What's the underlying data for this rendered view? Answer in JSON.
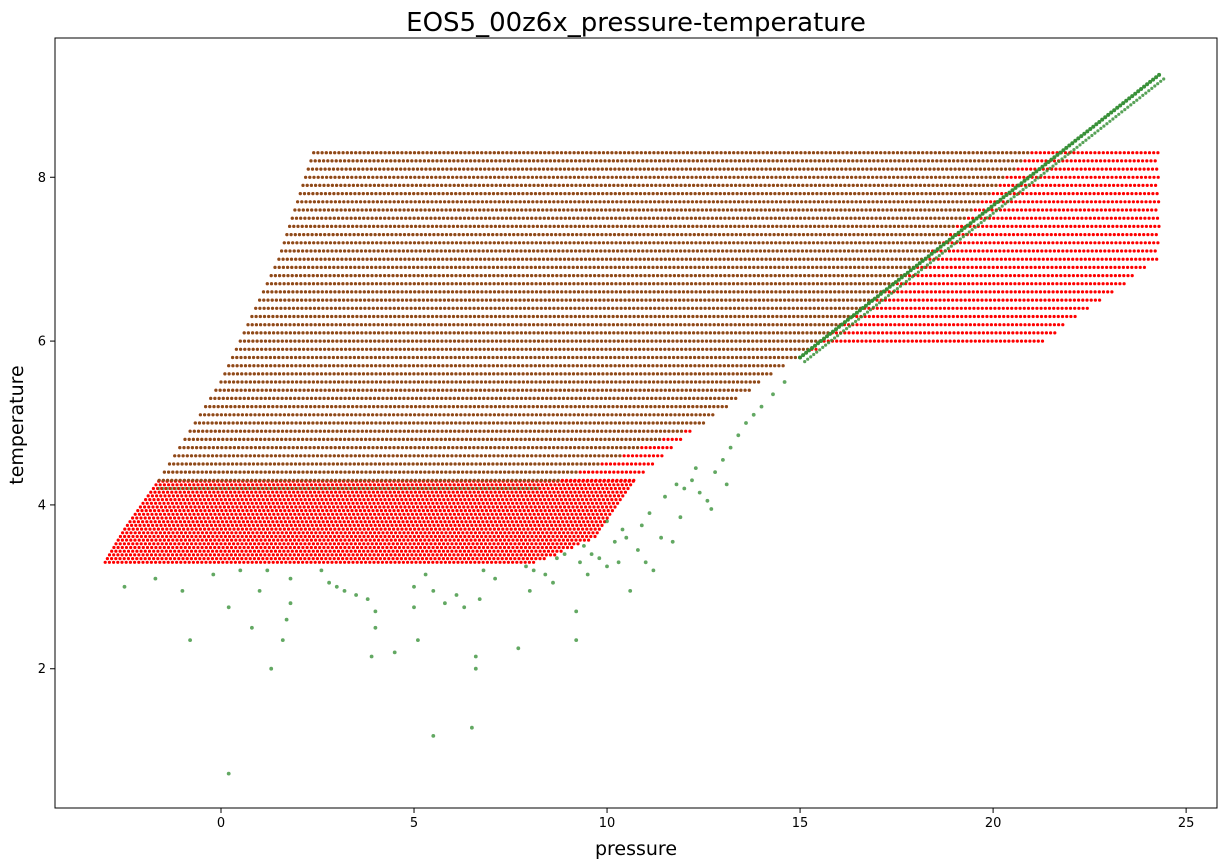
{
  "chart_data": {
    "type": "scatter",
    "title": "EOS5_00z6x_pressure-temperature",
    "xlabel": "pressure",
    "ylabel": "temperature",
    "xlim": [
      -4.3,
      25.8
    ],
    "ylim": [
      0.3,
      9.7
    ],
    "xticks": [
      0,
      5,
      10,
      15,
      20,
      25
    ],
    "yticks": [
      2,
      4,
      6,
      8
    ],
    "grid": false,
    "legend": "none",
    "series": [
      {
        "color": "#ff0000",
        "marker": "dot",
        "grid_region": {
          "y_range": [
            3.3,
            8.3
          ],
          "y_bands": [
            {
              "y_step": 0.045,
              "y_range": [
                3.3,
                4.3
              ]
            },
            {
              "y_step": 0.1,
              "y_range": [
                4.3,
                8.3
              ]
            }
          ],
          "left_boundary": [
            [
              -3.0,
              3.3
            ],
            [
              -2.5,
              3.7
            ],
            [
              -1.6,
              4.3
            ],
            [
              0.0,
              5.5
            ],
            [
              1.5,
              7.0
            ],
            [
              2.4,
              8.3
            ]
          ],
          "right_boundary": [
            [
              8.2,
              3.3
            ],
            [
              9.7,
              3.6
            ],
            [
              10.7,
              4.3
            ],
            [
              12.5,
              5.0
            ],
            [
              14.0,
              5.5
            ],
            [
              15.0,
              5.8
            ],
            [
              15.5,
              5.9
            ],
            [
              21.0,
              5.9
            ],
            [
              24.3,
              7.0
            ],
            [
              24.3,
              8.3
            ]
          ]
        }
      },
      {
        "color": "#2e8b2e",
        "marker": "dot",
        "grid_region": {
          "y_range": [
            4.2,
            8.3
          ],
          "y_step": 0.1,
          "left_boundary": [
            [
              -1.6,
              4.3
            ],
            [
              0.0,
              5.5
            ],
            [
              1.5,
              7.0
            ],
            [
              2.4,
              8.3
            ]
          ],
          "right_boundary": [
            [
              8.2,
              4.2
            ],
            [
              12.5,
              5.0
            ],
            [
              14.0,
              5.5
            ],
            [
              15.0,
              5.8
            ],
            [
              18.0,
              6.9
            ],
            [
              21.0,
              8.3
            ]
          ]
        },
        "trend_line": {
          "x": [
            15.0,
            24.3
          ],
          "y": [
            5.8,
            9.25
          ]
        },
        "scattered_points": [
          [
            -2.5,
            3.0
          ],
          [
            -1.7,
            3.1
          ],
          [
            -1.0,
            2.95
          ],
          [
            -0.8,
            2.35
          ],
          [
            -0.2,
            3.15
          ],
          [
            0.2,
            2.75
          ],
          [
            0.2,
            0.72
          ],
          [
            0.5,
            3.2
          ],
          [
            0.8,
            2.5
          ],
          [
            1.0,
            2.95
          ],
          [
            1.2,
            3.2
          ],
          [
            1.3,
            2.0
          ],
          [
            1.6,
            2.35
          ],
          [
            1.7,
            2.6
          ],
          [
            1.8,
            2.8
          ],
          [
            1.8,
            3.1
          ],
          [
            2.6,
            3.2
          ],
          [
            2.8,
            3.05
          ],
          [
            3.0,
            3.0
          ],
          [
            3.2,
            2.95
          ],
          [
            3.5,
            2.9
          ],
          [
            3.8,
            2.85
          ],
          [
            4.0,
            2.7
          ],
          [
            4.0,
            2.5
          ],
          [
            3.9,
            2.15
          ],
          [
            4.5,
            2.2
          ],
          [
            5.0,
            2.75
          ],
          [
            5.0,
            3.0
          ],
          [
            5.1,
            2.35
          ],
          [
            5.3,
            3.15
          ],
          [
            5.5,
            2.95
          ],
          [
            5.5,
            1.18
          ],
          [
            5.8,
            2.8
          ],
          [
            6.1,
            2.9
          ],
          [
            6.3,
            2.75
          ],
          [
            6.5,
            1.28
          ],
          [
            6.6,
            2.15
          ],
          [
            6.6,
            2.0
          ],
          [
            6.7,
            2.85
          ],
          [
            6.8,
            3.2
          ],
          [
            7.1,
            3.1
          ],
          [
            7.7,
            2.25
          ],
          [
            8.0,
            2.95
          ],
          [
            8.1,
            3.2
          ],
          [
            8.4,
            3.15
          ],
          [
            8.6,
            3.05
          ],
          [
            8.9,
            3.4
          ],
          [
            9.2,
            2.7
          ],
          [
            9.2,
            2.35
          ],
          [
            9.3,
            3.3
          ],
          [
            9.5,
            3.15
          ],
          [
            9.6,
            3.4
          ],
          [
            10.0,
            3.25
          ],
          [
            10.0,
            3.8
          ],
          [
            10.2,
            3.55
          ],
          [
            10.3,
            3.3
          ],
          [
            10.5,
            3.6
          ],
          [
            10.6,
            2.95
          ],
          [
            10.8,
            3.45
          ],
          [
            11.0,
            3.3
          ],
          [
            11.1,
            3.9
          ],
          [
            11.2,
            3.2
          ],
          [
            11.4,
            3.6
          ],
          [
            11.5,
            4.1
          ],
          [
            11.7,
            3.55
          ],
          [
            11.9,
            3.85
          ],
          [
            12.0,
            4.2
          ],
          [
            12.2,
            4.3
          ],
          [
            12.4,
            4.15
          ],
          [
            12.6,
            4.05
          ],
          [
            12.8,
            4.4
          ],
          [
            13.0,
            4.55
          ],
          [
            13.2,
            4.7
          ],
          [
            13.4,
            4.85
          ],
          [
            13.6,
            5.0
          ],
          [
            13.8,
            5.1
          ],
          [
            14.0,
            5.2
          ],
          [
            14.3,
            5.35
          ],
          [
            14.6,
            5.5
          ],
          [
            9.8,
            3.35
          ],
          [
            10.4,
            3.7
          ],
          [
            10.9,
            3.75
          ],
          [
            11.8,
            4.25
          ],
          [
            12.3,
            4.45
          ],
          [
            9.4,
            3.5
          ],
          [
            8.7,
            3.35
          ],
          [
            7.9,
            3.25
          ],
          [
            13.1,
            4.25
          ],
          [
            12.7,
            3.95
          ]
        ]
      }
    ]
  }
}
